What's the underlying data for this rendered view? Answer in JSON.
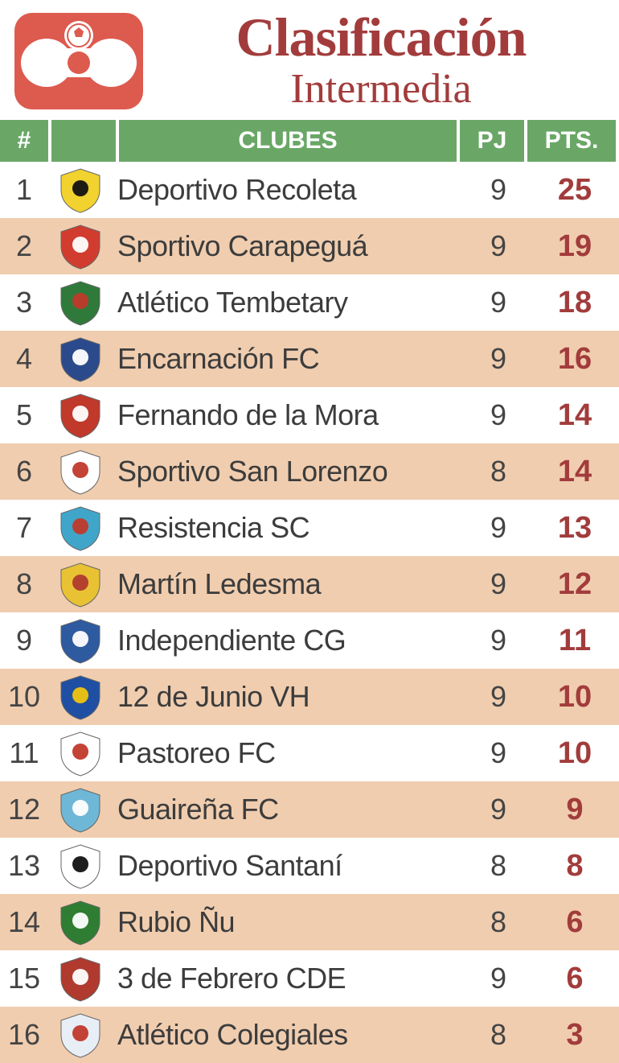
{
  "header": {
    "title_main": "Clasificación",
    "title_sub": "Intermedia",
    "title_color": "#a23c3c",
    "logo_bg": "#dd5a4f",
    "logo_fg": "#ffffff"
  },
  "table": {
    "header_bg": "#6aa767",
    "header_text": "#ffffff",
    "row_odd_bg": "#ffffff",
    "row_even_bg": "#f0cdaf",
    "rank_color": "#444444",
    "club_color": "#3c3c3c",
    "pj_color": "#444444",
    "pts_color": "#a23c3c",
    "columns": {
      "rank": "#",
      "club": "CLUBES",
      "pj": "PJ",
      "pts": "PTS."
    },
    "rows": [
      {
        "rank": 1,
        "club": "Deportivo Recoleta",
        "pj": 9,
        "pts": 25,
        "crest_bg": "#f2d22e",
        "crest_fg": "#111111"
      },
      {
        "rank": 2,
        "club": "Sportivo Carapeguá",
        "pj": 9,
        "pts": 19,
        "crest_bg": "#d13c2f",
        "crest_fg": "#ffffff"
      },
      {
        "rank": 3,
        "club": "Atlético Tembetary",
        "pj": 9,
        "pts": 18,
        "crest_bg": "#2f7a3a",
        "crest_fg": "#c0392b"
      },
      {
        "rank": 4,
        "club": "Encarnación FC",
        "pj": 9,
        "pts": 16,
        "crest_bg": "#2b4a8b",
        "crest_fg": "#ffffff"
      },
      {
        "rank": 5,
        "club": "Fernando de la Mora",
        "pj": 9,
        "pts": 14,
        "crest_bg": "#c0392b",
        "crest_fg": "#ffffff"
      },
      {
        "rank": 6,
        "club": "Sportivo San Lorenzo",
        "pj": 8,
        "pts": 14,
        "crest_bg": "#ffffff",
        "crest_fg": "#c0392b"
      },
      {
        "rank": 7,
        "club": "Resistencia SC",
        "pj": 9,
        "pts": 13,
        "crest_bg": "#3fa6c9",
        "crest_fg": "#c0392b"
      },
      {
        "rank": 8,
        "club": "Martín Ledesma",
        "pj": 9,
        "pts": 12,
        "crest_bg": "#e8c233",
        "crest_fg": "#b03a2e"
      },
      {
        "rank": 9,
        "club": "Independiente CG",
        "pj": 9,
        "pts": 11,
        "crest_bg": "#2e5aa0",
        "crest_fg": "#ffffff"
      },
      {
        "rank": 10,
        "club": "12 de Junio VH",
        "pj": 9,
        "pts": 10,
        "crest_bg": "#1f4fa3",
        "crest_fg": "#f1c40f"
      },
      {
        "rank": 11,
        "club": "Pastoreo FC",
        "pj": 9,
        "pts": 10,
        "crest_bg": "#ffffff",
        "crest_fg": "#c0392b"
      },
      {
        "rank": 12,
        "club": "Guaireña FC",
        "pj": 9,
        "pts": 9,
        "crest_bg": "#6fb7d6",
        "crest_fg": "#ffffff"
      },
      {
        "rank": 13,
        "club": "Deportivo Santaní",
        "pj": 8,
        "pts": 8,
        "crest_bg": "#ffffff",
        "crest_fg": "#111111"
      },
      {
        "rank": 14,
        "club": "Rubio Ñu",
        "pj": 8,
        "pts": 6,
        "crest_bg": "#2e7d32",
        "crest_fg": "#ffffff"
      },
      {
        "rank": 15,
        "club": "3 de Febrero CDE",
        "pj": 9,
        "pts": 6,
        "crest_bg": "#b03a2e",
        "crest_fg": "#ffffff"
      },
      {
        "rank": 16,
        "club": "Atlético Colegiales",
        "pj": 8,
        "pts": 3,
        "crest_bg": "#e8eef6",
        "crest_fg": "#c0392b"
      }
    ]
  }
}
